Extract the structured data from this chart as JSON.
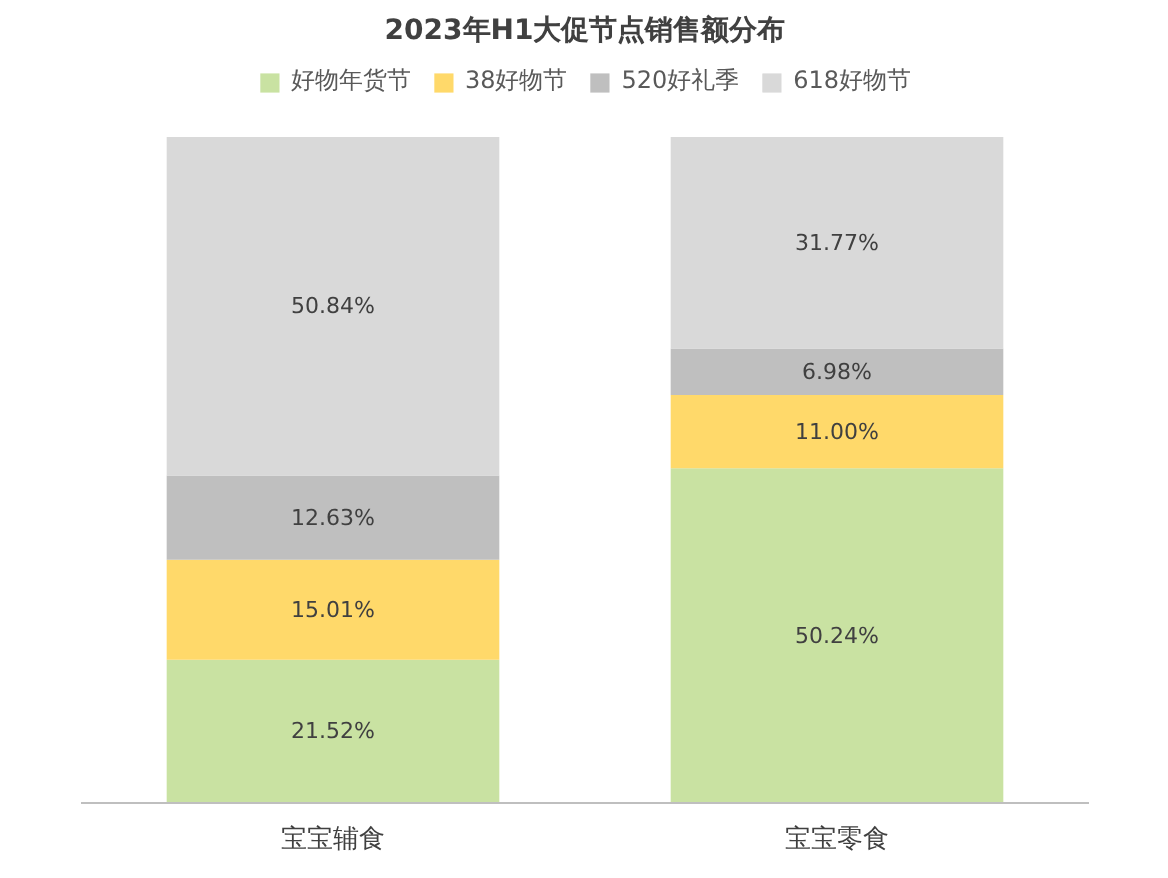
{
  "chart_data": {
    "type": "bar",
    "title": "2023年H1大促节点销售额分布",
    "categories": [
      "宝宝辅食",
      "宝宝零食"
    ],
    "stacked": true,
    "legend": "top",
    "grid": false,
    "series": [
      {
        "name": "好物年货节",
        "color": "#c9e2a2",
        "values": [
          21.52,
          50.24
        ],
        "value_labels": [
          "21.52%",
          "50.24%"
        ]
      },
      {
        "name": "38好物节",
        "color": "#ffd96a",
        "values": [
          15.01,
          11.0
        ],
        "value_labels": [
          "15.01%",
          "11.00%"
        ]
      },
      {
        "name": "520好礼季",
        "color": "#bfbfbf",
        "values": [
          12.63,
          6.98
        ],
        "value_labels": [
          "12.63%",
          "6.98%"
        ]
      },
      {
        "name": "618好物节",
        "color": "#d9d9d9",
        "values": [
          50.84,
          31.77
        ],
        "value_labels": [
          "50.84%",
          "31.77%"
        ]
      }
    ]
  }
}
